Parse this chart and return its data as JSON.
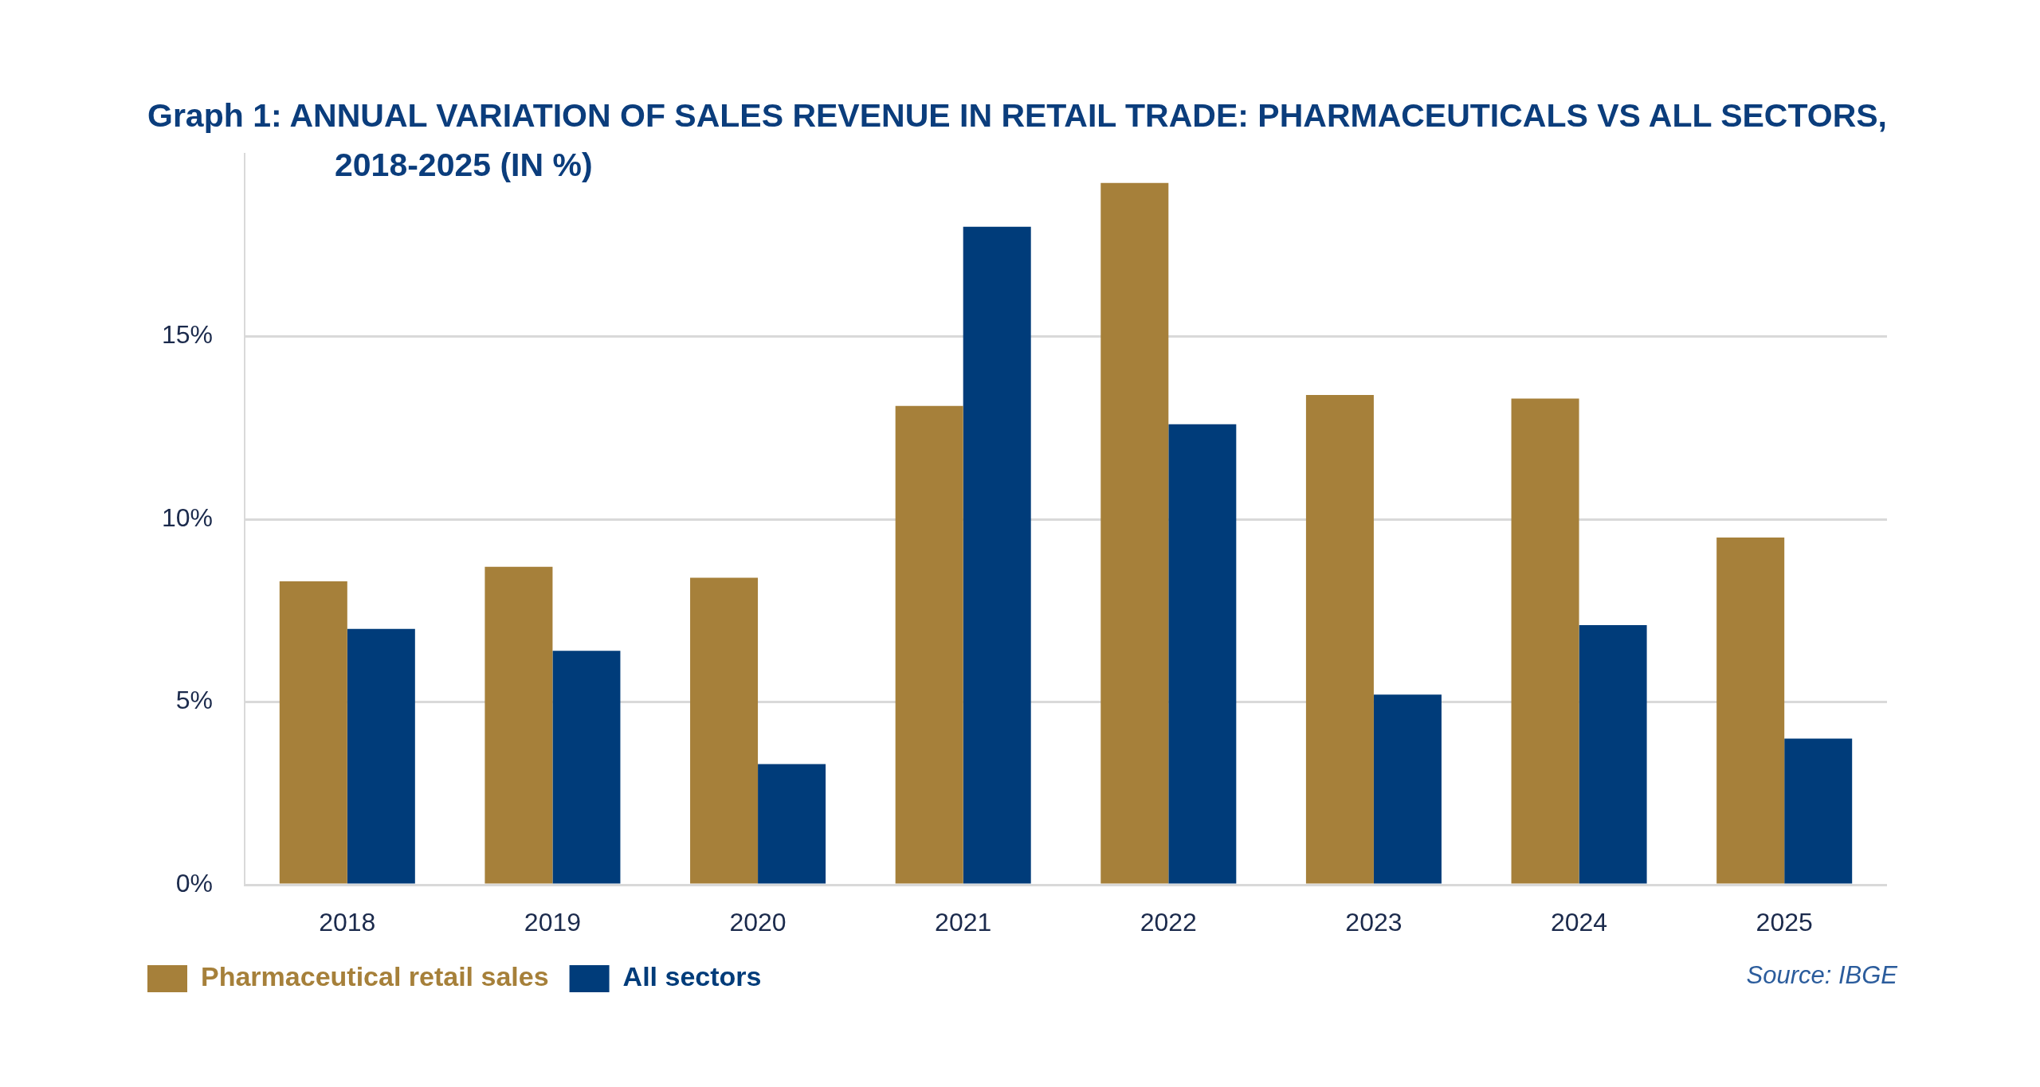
{
  "chart_data": {
    "type": "bar",
    "title": "Graph 1: ANNUAL VARIATION OF SALES REVENUE IN RETAIL TRADE: PHARMACEUTICALS VS ALL SECTORS, 2018-2025 (IN %)",
    "categories": [
      "2018",
      "2019",
      "2020",
      "2021",
      "2022",
      "2023",
      "2024",
      "2025"
    ],
    "series": [
      {
        "name": "Pharmaceutical retail sales",
        "color": "#a6803a",
        "values": [
          8.3,
          8.7,
          8.4,
          13.1,
          19.2,
          13.4,
          13.3,
          9.5
        ]
      },
      {
        "name": "All sectors",
        "color": "#003c7a",
        "values": [
          7.0,
          6.4,
          3.3,
          18.0,
          12.6,
          5.2,
          7.1,
          4.0
        ]
      }
    ],
    "ylim": [
      0,
      20
    ],
    "yticks": [
      {
        "value": 0,
        "label": "0%"
      },
      {
        "value": 5,
        "label": "5%"
      },
      {
        "value": 10,
        "label": "10%"
      },
      {
        "value": 15,
        "label": "15%"
      }
    ],
    "grid": "y",
    "legend": "bottom left",
    "annotations": [
      "Source: IBGE"
    ]
  }
}
